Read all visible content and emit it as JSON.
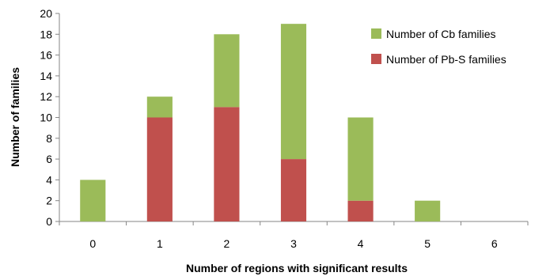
{
  "chart_data": {
    "type": "bar",
    "stacked": true,
    "categories": [
      "0",
      "1",
      "2",
      "3",
      "4",
      "5",
      "6"
    ],
    "series": [
      {
        "name": "Number of Pb-S families",
        "color": "#c0504d",
        "values": [
          0,
          10,
          11,
          6,
          2,
          0,
          0
        ]
      },
      {
        "name": "Number of Cb families",
        "color": "#9bbb59",
        "values": [
          4,
          2,
          7,
          13,
          8,
          2,
          0
        ]
      }
    ],
    "xlabel": "Number of regions with significant results",
    "ylabel": "Number of families",
    "ylim": [
      0,
      20
    ],
    "yticks": [
      "0",
      "2",
      "4",
      "6",
      "8",
      "10",
      "12",
      "14",
      "16",
      "18",
      "20"
    ],
    "grid": false,
    "legend_placement": "top-right",
    "legend": [
      {
        "label": "Number of Cb families",
        "color": "#9bbb59"
      },
      {
        "label": "Number of Pb-S families",
        "color": "#c0504d"
      }
    ]
  }
}
